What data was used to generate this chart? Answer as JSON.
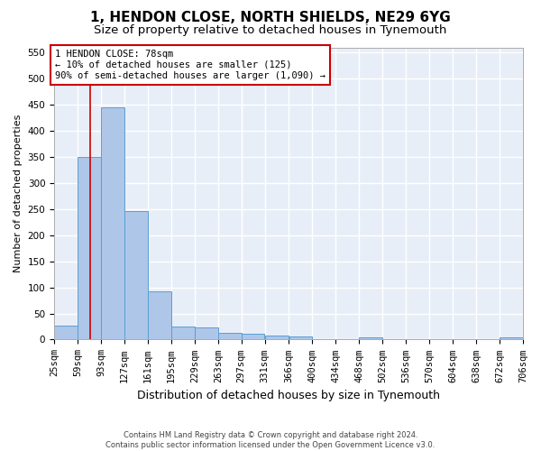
{
  "title": "1, HENDON CLOSE, NORTH SHIELDS, NE29 6YG",
  "subtitle": "Size of property relative to detached houses in Tynemouth",
  "xlabel": "Distribution of detached houses by size in Tynemouth",
  "ylabel": "Number of detached properties",
  "footer_line1": "Contains HM Land Registry data © Crown copyright and database right 2024.",
  "footer_line2": "Contains public sector information licensed under the Open Government Licence v3.0.",
  "bar_values": [
    27,
    350,
    445,
    247,
    93,
    25,
    24,
    13,
    11,
    8,
    6,
    0,
    0,
    5,
    0,
    0,
    0,
    0,
    0,
    5
  ],
  "bin_edges": [
    25,
    59,
    93,
    127,
    161,
    195,
    229,
    263,
    297,
    331,
    366,
    400,
    434,
    468,
    502,
    536,
    570,
    604,
    638,
    672,
    706
  ],
  "tick_labels": [
    "25sqm",
    "59sqm",
    "93sqm",
    "127sqm",
    "161sqm",
    "195sqm",
    "229sqm",
    "263sqm",
    "297sqm",
    "331sqm",
    "366sqm",
    "400sqm",
    "434sqm",
    "468sqm",
    "502sqm",
    "536sqm",
    "570sqm",
    "604sqm",
    "638sqm",
    "672sqm",
    "706sqm"
  ],
  "bar_color": "#aec6e8",
  "bar_edge_color": "#5a9fd4",
  "vline_x": 78,
  "vline_color": "#cc0000",
  "annotation_text": "1 HENDON CLOSE: 78sqm\n← 10% of detached houses are smaller (125)\n90% of semi-detached houses are larger (1,090) →",
  "annotation_box_color": "#ffffff",
  "annotation_box_edge": "#cc0000",
  "ylim": [
    0,
    560
  ],
  "yticks": [
    0,
    50,
    100,
    150,
    200,
    250,
    300,
    350,
    400,
    450,
    500,
    550
  ],
  "background_color": "#ffffff",
  "plot_bg_color": "#e8eef8",
  "grid_color": "#ffffff",
  "title_fontsize": 11,
  "subtitle_fontsize": 9.5,
  "ylabel_fontsize": 8,
  "xlabel_fontsize": 9,
  "tick_fontsize": 7.5,
  "footer_fontsize": 6,
  "annotation_fontsize": 7.5
}
